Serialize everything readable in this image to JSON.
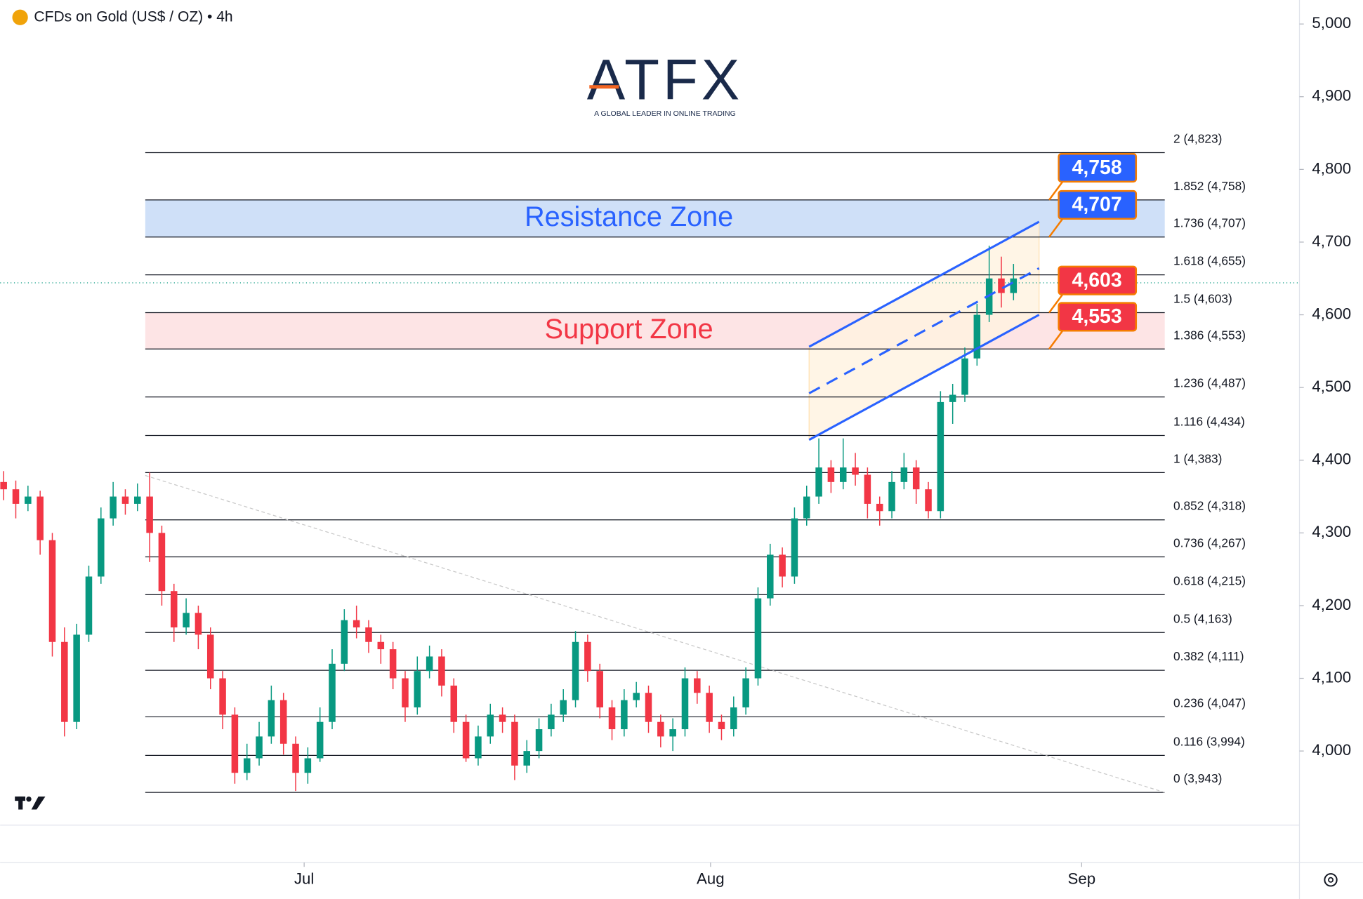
{
  "header": {
    "title": "CFDs on Gold (US$ / OZ) • 4h"
  },
  "logo": {
    "name": "ATFX",
    "tagline": "A GLOBAL LEADER IN ONLINE TRADING"
  },
  "chart_data": {
    "type": "candlestick",
    "up_color": "#089981",
    "down_color": "#f23645",
    "candles": [
      [
        4370,
        4385,
        4345,
        4360
      ],
      [
        4360,
        4372,
        4320,
        4340
      ],
      [
        4340,
        4365,
        4330,
        4350
      ],
      [
        4350,
        4358,
        4270,
        4290
      ],
      [
        4290,
        4300,
        4130,
        4150
      ],
      [
        4150,
        4170,
        4020,
        4040
      ],
      [
        4040,
        4175,
        4030,
        4160
      ],
      [
        4160,
        4255,
        4150,
        4240
      ],
      [
        4240,
        4335,
        4230,
        4320
      ],
      [
        4320,
        4370,
        4310,
        4350
      ],
      [
        4350,
        4360,
        4325,
        4340
      ],
      [
        4340,
        4368,
        4330,
        4350
      ],
      [
        4350,
        4383,
        4260,
        4300
      ],
      [
        4300,
        4310,
        4200,
        4220
      ],
      [
        4220,
        4230,
        4150,
        4170
      ],
      [
        4170,
        4210,
        4160,
        4190
      ],
      [
        4190,
        4200,
        4140,
        4160
      ],
      [
        4160,
        4170,
        4085,
        4100
      ],
      [
        4100,
        4110,
        4030,
        4050
      ],
      [
        4050,
        4060,
        3955,
        3970
      ],
      [
        3970,
        4010,
        3960,
        3990
      ],
      [
        3990,
        4040,
        3980,
        4020
      ],
      [
        4020,
        4090,
        4010,
        4070
      ],
      [
        4070,
        4080,
        3995,
        4010
      ],
      [
        4010,
        4020,
        3945,
        3970
      ],
      [
        3970,
        4005,
        3955,
        3990
      ],
      [
        3990,
        4060,
        3985,
        4040
      ],
      [
        4040,
        4140,
        4030,
        4120
      ],
      [
        4120,
        4195,
        4110,
        4180
      ],
      [
        4180,
        4200,
        4155,
        4170
      ],
      [
        4170,
        4180,
        4135,
        4150
      ],
      [
        4150,
        4160,
        4120,
        4140
      ],
      [
        4140,
        4150,
        4085,
        4100
      ],
      [
        4100,
        4110,
        4040,
        4060
      ],
      [
        4060,
        4130,
        4050,
        4110
      ],
      [
        4110,
        4145,
        4100,
        4130
      ],
      [
        4130,
        4140,
        4075,
        4090
      ],
      [
        4090,
        4100,
        4025,
        4040
      ],
      [
        4040,
        4050,
        3985,
        3990
      ],
      [
        3990,
        4035,
        3980,
        4020
      ],
      [
        4020,
        4065,
        4010,
        4050
      ],
      [
        4050,
        4060,
        4025,
        4040
      ],
      [
        4040,
        4050,
        3960,
        3980
      ],
      [
        3980,
        4015,
        3970,
        4000
      ],
      [
        4000,
        4045,
        3990,
        4030
      ],
      [
        4030,
        4065,
        4020,
        4050
      ],
      [
        4050,
        4085,
        4040,
        4070
      ],
      [
        4070,
        4165,
        4060,
        4150
      ],
      [
        4150,
        4160,
        4095,
        4110
      ],
      [
        4110,
        4120,
        4045,
        4060
      ],
      [
        4060,
        4070,
        4015,
        4030
      ],
      [
        4030,
        4085,
        4020,
        4070
      ],
      [
        4070,
        4095,
        4060,
        4080
      ],
      [
        4080,
        4090,
        4025,
        4040
      ],
      [
        4040,
        4050,
        4005,
        4020
      ],
      [
        4020,
        4045,
        4000,
        4030
      ],
      [
        4030,
        4115,
        4020,
        4100
      ],
      [
        4100,
        4110,
        4065,
        4080
      ],
      [
        4080,
        4090,
        4025,
        4040
      ],
      [
        4040,
        4050,
        4015,
        4030
      ],
      [
        4030,
        4075,
        4020,
        4060
      ],
      [
        4060,
        4115,
        4050,
        4100
      ],
      [
        4100,
        4225,
        4090,
        4210
      ],
      [
        4210,
        4285,
        4200,
        4270
      ],
      [
        4270,
        4280,
        4225,
        4240
      ],
      [
        4240,
        4335,
        4230,
        4320
      ],
      [
        4320,
        4365,
        4310,
        4350
      ],
      [
        4350,
        4430,
        4340,
        4390
      ],
      [
        4390,
        4400,
        4355,
        4370
      ],
      [
        4370,
        4430,
        4360,
        4390
      ],
      [
        4390,
        4410,
        4365,
        4380
      ],
      [
        4380,
        4390,
        4320,
        4340
      ],
      [
        4340,
        4350,
        4310,
        4330
      ],
      [
        4330,
        4385,
        4320,
        4370
      ],
      [
        4370,
        4410,
        4360,
        4390
      ],
      [
        4390,
        4400,
        4340,
        4360
      ],
      [
        4360,
        4370,
        4320,
        4330
      ],
      [
        4330,
        4495,
        4320,
        4480
      ],
      [
        4480,
        4505,
        4450,
        4490
      ],
      [
        4490,
        4555,
        4480,
        4540
      ],
      [
        4540,
        4615,
        4530,
        4600
      ],
      [
        4600,
        4695,
        4590,
        4650
      ],
      [
        4650,
        4680,
        4610,
        4630
      ],
      [
        4630,
        4670,
        4620,
        4650
      ]
    ],
    "xlim": [
      -0.29,
      106.5
    ],
    "xticks": [
      {
        "value": 24.7,
        "label": "Jul"
      },
      {
        "value": 58.1,
        "label": "Aug"
      },
      {
        "value": 88.6,
        "label": "Sep"
      }
    ],
    "ylim": [
      3898,
      5033
    ],
    "yticks": [
      {
        "value": 4000,
        "label": "4,000"
      },
      {
        "value": 4100,
        "label": "4,100"
      },
      {
        "value": 4200,
        "label": "4,200"
      },
      {
        "value": 4300,
        "label": "4,300"
      },
      {
        "value": 4400,
        "label": "4,400"
      },
      {
        "value": 4500,
        "label": "4,500"
      },
      {
        "value": 4600,
        "label": "4,600"
      },
      {
        "value": 4700,
        "label": "4,700"
      },
      {
        "value": 4800,
        "label": "4,800"
      },
      {
        "value": 4900,
        "label": "4,900"
      },
      {
        "value": 5000,
        "label": "5,000"
      }
    ],
    "last_price": 4644,
    "fib_range": [
      11.64,
      95.43
    ],
    "fib_levels": [
      {
        "value": 4823,
        "label": "2 (4,823)"
      },
      {
        "value": 4758,
        "label": "1.852 (4,758)"
      },
      {
        "value": 4707,
        "label": "1.736 (4,707)"
      },
      {
        "value": 4655,
        "label": "1.618 (4,655)"
      },
      {
        "value": 4603,
        "label": "1.5 (4,603)"
      },
      {
        "value": 4553,
        "label": "1.386 (4,553)"
      },
      {
        "value": 4487,
        "label": "1.236 (4,487)"
      },
      {
        "value": 4434,
        "label": "1.116 (4,434)"
      },
      {
        "value": 4383,
        "label": "1 (4,383)"
      },
      {
        "value": 4318,
        "label": "0.852 (4,318)"
      },
      {
        "value": 4267,
        "label": "0.736 (4,267)"
      },
      {
        "value": 4215,
        "label": "0.618 (4,215)"
      },
      {
        "value": 4163,
        "label": "0.5 (4,163)"
      },
      {
        "value": 4111,
        "label": "0.382 (4,111)"
      },
      {
        "value": 4047,
        "label": "0.236 (4,047)"
      },
      {
        "value": 3994,
        "label": "0.116 (3,994)"
      },
      {
        "value": 3943,
        "label": "0 (3,943)"
      }
    ],
    "zones": [
      {
        "name": "Resistance Zone",
        "range": [
          4707,
          4758
        ],
        "color": "#2962ff",
        "fill": "#cfe0f8"
      },
      {
        "name": "Support Zone",
        "range": [
          4553,
          4603
        ],
        "color": "#f23645",
        "fill": "#fde4e5"
      }
    ],
    "price_tags": [
      {
        "value": 4758,
        "label": "4,758",
        "color": "#2962ff"
      },
      {
        "value": 4707,
        "label": "4,707",
        "color": "#2962ff"
      },
      {
        "value": 4603,
        "label": "4,603",
        "color": "#f23645"
      },
      {
        "value": 4553,
        "label": "4,553",
        "color": "#f23645"
      }
    ],
    "channel": {
      "x": [
        66.2,
        85.1
      ],
      "lower": [
        4428,
        4600
      ],
      "upper": [
        4556,
        4728
      ],
      "color": "#2962ff",
      "fill": "#fff3e0"
    },
    "trendline": {
      "x": [
        11.64,
        95.43
      ],
      "y": [
        4379,
        3943
      ],
      "color": "#c8c8c8"
    }
  }
}
